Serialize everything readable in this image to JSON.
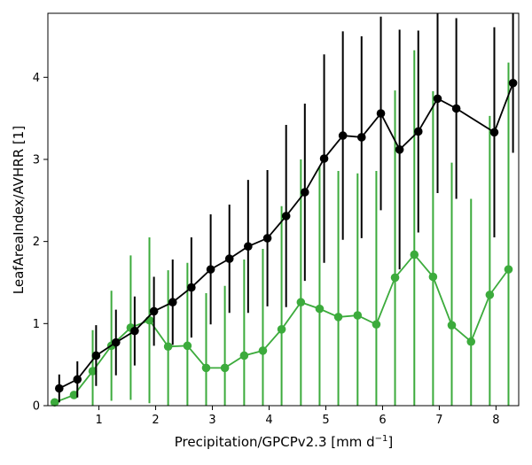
{
  "chart_data": {
    "type": "line",
    "xlabel": "Precipitation/GPCPv2.3 [mm d",
    "xlabel_sup": "−1",
    "xlabel_tail": "]",
    "ylabel": "LeafAreaIndex/AVHRR [1]",
    "xlim": [
      0.1,
      8.4
    ],
    "ylim": [
      0,
      4.78
    ],
    "xticks": [
      1,
      2,
      3,
      4,
      5,
      6,
      7,
      8
    ],
    "yticks": [
      0,
      1,
      2,
      3,
      4
    ],
    "grid": false,
    "series": [
      {
        "color": "#000000",
        "x": [
          0.3,
          0.62,
          0.95,
          1.3,
          1.63,
          1.97,
          2.3,
          2.63,
          2.97,
          3.3,
          3.63,
          3.97,
          4.3,
          4.63,
          4.97,
          5.3,
          5.63,
          5.97,
          6.3,
          6.63,
          6.97,
          7.3,
          7.97,
          8.3
        ],
        "y": [
          0.21,
          0.32,
          0.61,
          0.77,
          0.91,
          1.15,
          1.26,
          1.44,
          1.66,
          1.79,
          1.94,
          2.04,
          2.31,
          2.6,
          3.01,
          3.29,
          3.27,
          3.56,
          3.12,
          3.34,
          3.74,
          3.62,
          3.33,
          3.93
        ],
        "err": [
          0.17,
          0.22,
          0.37,
          0.4,
          0.42,
          0.42,
          0.52,
          0.61,
          0.67,
          0.66,
          0.81,
          0.83,
          1.11,
          1.08,
          1.27,
          1.27,
          1.23,
          1.18,
          1.46,
          1.23,
          1.15,
          1.1,
          1.28,
          0.85
        ]
      },
      {
        "color": "#3cab3c",
        "x": [
          0.22,
          0.56,
          0.89,
          1.22,
          1.56,
          1.89,
          2.22,
          2.56,
          2.89,
          3.22,
          3.56,
          3.89,
          4.22,
          4.56,
          4.89,
          5.22,
          5.56,
          5.89,
          6.22,
          6.56,
          6.89,
          7.22,
          7.56,
          7.89,
          8.22
        ],
        "y": [
          0.04,
          0.13,
          0.42,
          0.73,
          0.95,
          1.04,
          0.72,
          0.73,
          0.46,
          0.46,
          0.61,
          0.67,
          0.93,
          1.26,
          1.18,
          1.08,
          1.1,
          0.99,
          1.56,
          1.84,
          1.57,
          0.98,
          0.78,
          1.35,
          1.66
        ],
        "err": [
          0.0,
          0.0,
          0.5,
          0.67,
          0.88,
          1.01,
          0.93,
          1.01,
          0.91,
          1.0,
          1.17,
          1.24,
          1.5,
          1.74,
          1.73,
          1.78,
          1.73,
          1.87,
          2.28,
          2.49,
          2.26,
          1.98,
          1.74,
          2.18,
          2.52
        ]
      }
    ]
  }
}
